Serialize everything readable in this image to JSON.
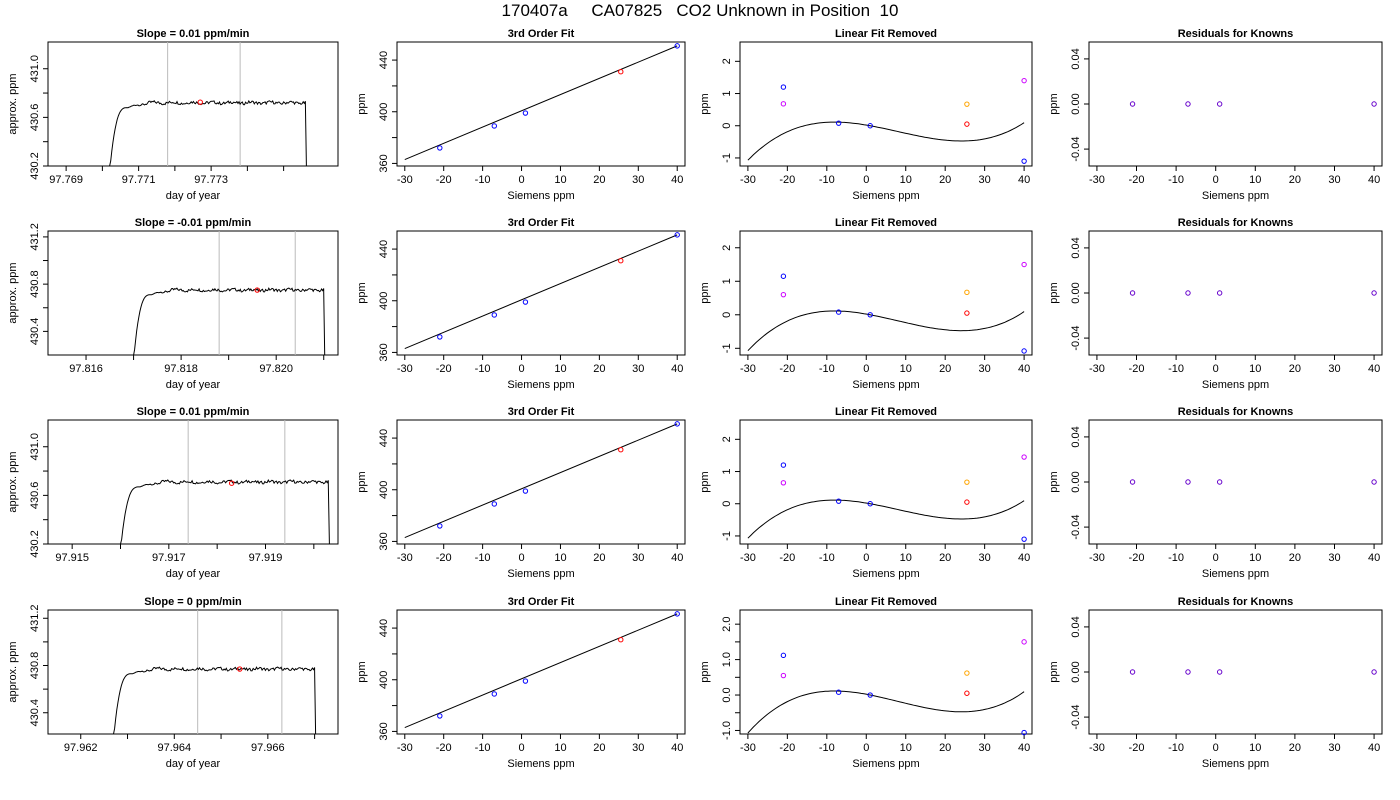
{
  "figure_title": "170407a     CA07825   CO2 Unknown in Position  10",
  "chart_data": [
    {
      "type": "line",
      "title": "Slope =  0.01  ppm/min",
      "xlabel": "day of year",
      "ylabel": "approx. ppm",
      "xlim": [
        97.7685,
        97.7765
      ],
      "ylim": [
        430.2,
        431.22
      ],
      "xticks": [
        97.769,
        97.77,
        97.771,
        97.772,
        97.773,
        97.774,
        97.775
      ],
      "xtick_labels": [
        "97.769",
        "",
        "97.771",
        "",
        "97.773",
        "",
        ""
      ],
      "yticks": [
        430.2,
        430.4,
        430.6,
        430.8,
        431.0
      ],
      "ytick_labels": [
        "430.2",
        "",
        "430.6",
        "",
        "431.0"
      ],
      "vlines": [
        97.7718,
        97.7738
      ],
      "trace_start": 97.7702,
      "trace_end": 97.7756,
      "plateau": 430.72,
      "marker": {
        "x": 97.7727,
        "y": 430.725,
        "color": "#ff0000"
      },
      "grid": false
    },
    {
      "type": "scatter",
      "title": "3rd Order Fit",
      "xlabel": "Siemens ppm",
      "ylabel": "ppm",
      "xlim": [
        -32,
        42
      ],
      "ylim": [
        358,
        454
      ],
      "xticks": [
        -30,
        -20,
        -10,
        0,
        10,
        20,
        30,
        40
      ],
      "yticks": [
        360,
        380,
        400,
        420,
        440
      ],
      "ytick_labels": [
        "360",
        "",
        "400",
        "",
        "440"
      ],
      "line": [
        [
          -30,
          363
        ],
        [
          40,
          451
        ]
      ],
      "points": [
        {
          "x": -21,
          "y": 372,
          "color": "#0000ff"
        },
        {
          "x": -7,
          "y": 389,
          "color": "#0000ff"
        },
        {
          "x": 1,
          "y": 399,
          "color": "#0000ff"
        },
        {
          "x": 25.5,
          "y": 431,
          "color": "#ff0000"
        },
        {
          "x": 40,
          "y": 451,
          "color": "#0000ff"
        }
      ]
    },
    {
      "type": "scatter",
      "title": "Linear Fit Removed",
      "xlabel": "Siemens ppm",
      "ylabel": "ppm",
      "xlim": [
        -32,
        42
      ],
      "ylim": [
        -1.25,
        2.6
      ],
      "xticks": [
        -30,
        -20,
        -10,
        0,
        10,
        20,
        30,
        40
      ],
      "yticks": [
        -1,
        0,
        1,
        2
      ],
      "curve": {
        "a": 3.512e-05,
        "b": -0.0008452,
        "c": -0.02057,
        "d": 0.02141,
        "x0": -30,
        "x1": 40
      },
      "points": [
        {
          "x": -21,
          "y": 1.2,
          "color": "#0000ff"
        },
        {
          "x": -21,
          "y": 0.68,
          "color": "#cc00ff"
        },
        {
          "x": -7,
          "y": 0.08,
          "color": "#0000ff"
        },
        {
          "x": 1,
          "y": 0.0,
          "color": "#0000ff"
        },
        {
          "x": 25.5,
          "y": 0.67,
          "color": "#ffa500"
        },
        {
          "x": 25.5,
          "y": 0.05,
          "color": "#ff0000"
        },
        {
          "x": 40,
          "y": 1.4,
          "color": "#cc00ff"
        },
        {
          "x": 40,
          "y": -1.1,
          "color": "#0000ff"
        }
      ]
    },
    {
      "type": "scatter",
      "title": "Residuals for Knowns",
      "xlabel": "Siemens ppm",
      "ylabel": "ppm",
      "xlim": [
        -32,
        42
      ],
      "ylim": [
        -0.055,
        0.055
      ],
      "xticks": [
        -30,
        -20,
        -10,
        0,
        10,
        20,
        30,
        40
      ],
      "yticks": [
        -0.04,
        0.0,
        0.04
      ],
      "ytick_labels": [
        "-0.04",
        "0.00",
        "0.04"
      ],
      "points": [
        {
          "x": -21,
          "y": 0,
          "color": "#6600cc"
        },
        {
          "x": -7,
          "y": 0,
          "color": "#6600cc"
        },
        {
          "x": 1,
          "y": 0,
          "color": "#6600cc"
        },
        {
          "x": 40,
          "y": 0,
          "color": "#6600cc"
        }
      ]
    },
    {
      "type": "line",
      "title": "Slope =  -0.01  ppm/min",
      "xlabel": "day of year",
      "ylabel": "approx. ppm",
      "xlim": [
        97.8152,
        97.8213
      ],
      "ylim": [
        430.2,
        431.25
      ],
      "xticks": [
        97.816,
        97.817,
        97.818,
        97.819,
        97.82,
        97.821
      ],
      "xtick_labels": [
        "97.816",
        "",
        "97.818",
        "",
        "97.820",
        ""
      ],
      "yticks": [
        430.4,
        430.6,
        430.8,
        431.0,
        431.2
      ],
      "ytick_labels": [
        "430.4",
        "",
        "430.8",
        "",
        "431.2"
      ],
      "vlines": [
        97.8188,
        97.8204
      ],
      "trace_start": 97.817,
      "trace_end": 97.821,
      "plateau": 430.75,
      "marker": {
        "x": 97.8196,
        "y": 430.75,
        "color": "#ff0000"
      },
      "grid": false
    },
    {
      "type": "scatter",
      "title": "3rd Order Fit",
      "xlabel": "Siemens ppm",
      "ylabel": "ppm",
      "xlim": [
        -32,
        42
      ],
      "ylim": [
        358,
        454
      ],
      "xticks": [
        -30,
        -20,
        -10,
        0,
        10,
        20,
        30,
        40
      ],
      "yticks": [
        360,
        380,
        400,
        420,
        440
      ],
      "ytick_labels": [
        "360",
        "",
        "400",
        "",
        "440"
      ],
      "line": [
        [
          -30,
          363
        ],
        [
          40,
          451
        ]
      ],
      "points": [
        {
          "x": -21,
          "y": 372,
          "color": "#0000ff"
        },
        {
          "x": -7,
          "y": 389,
          "color": "#0000ff"
        },
        {
          "x": 1,
          "y": 399,
          "color": "#0000ff"
        },
        {
          "x": 25.5,
          "y": 431,
          "color": "#ff0000"
        },
        {
          "x": 40,
          "y": 451,
          "color": "#0000ff"
        }
      ]
    },
    {
      "type": "scatter",
      "title": "Linear Fit Removed",
      "xlabel": "Siemens ppm",
      "ylabel": "ppm",
      "xlim": [
        -32,
        42
      ],
      "ylim": [
        -1.2,
        2.5
      ],
      "xticks": [
        -30,
        -20,
        -10,
        0,
        10,
        20,
        30,
        40
      ],
      "yticks": [
        -1,
        0,
        1,
        2
      ],
      "curve": {
        "a": 3.512e-05,
        "b": -0.0008452,
        "c": -0.02057,
        "d": 0.02141,
        "x0": -30,
        "x1": 40
      },
      "points": [
        {
          "x": -21,
          "y": 1.15,
          "color": "#0000ff"
        },
        {
          "x": -21,
          "y": 0.6,
          "color": "#cc00ff"
        },
        {
          "x": -7,
          "y": 0.08,
          "color": "#0000ff"
        },
        {
          "x": 1,
          "y": 0.0,
          "color": "#0000ff"
        },
        {
          "x": 25.5,
          "y": 0.67,
          "color": "#ffa500"
        },
        {
          "x": 25.5,
          "y": 0.05,
          "color": "#ff0000"
        },
        {
          "x": 40,
          "y": 1.5,
          "color": "#cc00ff"
        },
        {
          "x": 40,
          "y": -1.08,
          "color": "#0000ff"
        }
      ]
    },
    {
      "type": "scatter",
      "title": "Residuals for Knowns",
      "xlabel": "Siemens ppm",
      "ylabel": "ppm",
      "xlim": [
        -32,
        42
      ],
      "ylim": [
        -0.055,
        0.055
      ],
      "xticks": [
        -30,
        -20,
        -10,
        0,
        10,
        20,
        30,
        40
      ],
      "yticks": [
        -0.04,
        0.0,
        0.04
      ],
      "ytick_labels": [
        "-0.04",
        "0.00",
        "0.04"
      ],
      "points": [
        {
          "x": -21,
          "y": 0,
          "color": "#6600cc"
        },
        {
          "x": -7,
          "y": 0,
          "color": "#6600cc"
        },
        {
          "x": 1,
          "y": 0,
          "color": "#6600cc"
        },
        {
          "x": 40,
          "y": 0,
          "color": "#6600cc"
        }
      ]
    },
    {
      "type": "line",
      "title": "Slope =  0.01  ppm/min",
      "xlabel": "day of year",
      "ylabel": "approx. ppm",
      "xlim": [
        97.9145,
        97.9205
      ],
      "ylim": [
        430.2,
        431.22
      ],
      "xticks": [
        97.915,
        97.916,
        97.917,
        97.918,
        97.919,
        97.92
      ],
      "xtick_labels": [
        "97.915",
        "",
        "97.917",
        "",
        "97.919",
        ""
      ],
      "yticks": [
        430.2,
        430.4,
        430.6,
        430.8,
        431.0
      ],
      "ytick_labels": [
        "430.2",
        "",
        "430.6",
        "",
        "431.0"
      ],
      "vlines": [
        97.9174,
        97.9194
      ],
      "trace_start": 97.916,
      "trace_end": 97.9203,
      "plateau": 430.71,
      "marker": {
        "x": 97.9183,
        "y": 430.7,
        "color": "#ff0000"
      },
      "grid": false
    },
    {
      "type": "scatter",
      "title": "3rd Order Fit",
      "xlabel": "Siemens ppm",
      "ylabel": "ppm",
      "xlim": [
        -32,
        42
      ],
      "ylim": [
        358,
        454
      ],
      "xticks": [
        -30,
        -20,
        -10,
        0,
        10,
        20,
        30,
        40
      ],
      "yticks": [
        360,
        380,
        400,
        420,
        440
      ],
      "ytick_labels": [
        "360",
        "",
        "400",
        "",
        "440"
      ],
      "line": [
        [
          -30,
          363
        ],
        [
          40,
          451
        ]
      ],
      "points": [
        {
          "x": -21,
          "y": 372,
          "color": "#0000ff"
        },
        {
          "x": -7,
          "y": 389,
          "color": "#0000ff"
        },
        {
          "x": 1,
          "y": 399,
          "color": "#0000ff"
        },
        {
          "x": 25.5,
          "y": 431,
          "color": "#ff0000"
        },
        {
          "x": 40,
          "y": 451,
          "color": "#0000ff"
        }
      ]
    },
    {
      "type": "scatter",
      "title": "Linear Fit Removed",
      "xlabel": "Siemens ppm",
      "ylabel": "ppm",
      "xlim": [
        -32,
        42
      ],
      "ylim": [
        -1.25,
        2.6
      ],
      "xticks": [
        -30,
        -20,
        -10,
        0,
        10,
        20,
        30,
        40
      ],
      "yticks": [
        -1,
        0,
        1,
        2
      ],
      "curve": {
        "a": 3.512e-05,
        "b": -0.0008452,
        "c": -0.02057,
        "d": 0.02141,
        "x0": -30,
        "x1": 40
      },
      "points": [
        {
          "x": -21,
          "y": 1.2,
          "color": "#0000ff"
        },
        {
          "x": -21,
          "y": 0.65,
          "color": "#cc00ff"
        },
        {
          "x": -7,
          "y": 0.08,
          "color": "#0000ff"
        },
        {
          "x": 1,
          "y": 0.0,
          "color": "#0000ff"
        },
        {
          "x": 25.5,
          "y": 0.67,
          "color": "#ffa500"
        },
        {
          "x": 25.5,
          "y": 0.05,
          "color": "#ff0000"
        },
        {
          "x": 40,
          "y": 1.45,
          "color": "#cc00ff"
        },
        {
          "x": 40,
          "y": -1.1,
          "color": "#0000ff"
        }
      ]
    },
    {
      "type": "scatter",
      "title": "Residuals for Knowns",
      "xlabel": "Siemens ppm",
      "ylabel": "ppm",
      "xlim": [
        -32,
        42
      ],
      "ylim": [
        -0.055,
        0.055
      ],
      "xticks": [
        -30,
        -20,
        -10,
        0,
        10,
        20,
        30,
        40
      ],
      "yticks": [
        -0.04,
        0.0,
        0.04
      ],
      "ytick_labels": [
        "-0.04",
        "0.00",
        "0.04"
      ],
      "points": [
        {
          "x": -21,
          "y": 0,
          "color": "#6600cc"
        },
        {
          "x": -7,
          "y": 0,
          "color": "#6600cc"
        },
        {
          "x": 1,
          "y": 0,
          "color": "#6600cc"
        },
        {
          "x": 40,
          "y": 0,
          "color": "#6600cc"
        }
      ]
    },
    {
      "type": "line",
      "title": "Slope =  0  ppm/min",
      "xlabel": "day of year",
      "ylabel": "approx. ppm",
      "xlim": [
        97.9613,
        97.9675
      ],
      "ylim": [
        430.22,
        431.27
      ],
      "xticks": [
        97.962,
        97.963,
        97.964,
        97.965,
        97.966,
        97.967
      ],
      "xtick_labels": [
        "97.962",
        "",
        "97.964",
        "",
        "97.966",
        ""
      ],
      "yticks": [
        430.4,
        430.6,
        430.8,
        431.0,
        431.2
      ],
      "ytick_labels": [
        "430.4",
        "",
        "430.8",
        "",
        "431.2"
      ],
      "vlines": [
        97.9645,
        97.9663
      ],
      "trace_start": 97.9627,
      "trace_end": 97.967,
      "plateau": 430.77,
      "marker": {
        "x": 97.9654,
        "y": 430.77,
        "color": "#ff0000"
      },
      "grid": false
    },
    {
      "type": "scatter",
      "title": "3rd Order Fit",
      "xlabel": "Siemens ppm",
      "ylabel": "ppm",
      "xlim": [
        -32,
        42
      ],
      "ylim": [
        358,
        454
      ],
      "xticks": [
        -30,
        -20,
        -10,
        0,
        10,
        20,
        30,
        40
      ],
      "yticks": [
        360,
        380,
        400,
        420,
        440
      ],
      "ytick_labels": [
        "360",
        "",
        "400",
        "",
        "440"
      ],
      "line": [
        [
          -30,
          363
        ],
        [
          40,
          451
        ]
      ],
      "points": [
        {
          "x": -21,
          "y": 372,
          "color": "#0000ff"
        },
        {
          "x": -7,
          "y": 389,
          "color": "#0000ff"
        },
        {
          "x": 1,
          "y": 399,
          "color": "#0000ff"
        },
        {
          "x": 25.5,
          "y": 431,
          "color": "#ff0000"
        },
        {
          "x": 40,
          "y": 451,
          "color": "#0000ff"
        }
      ]
    },
    {
      "type": "scatter",
      "title": "Linear Fit Removed",
      "xlabel": "Siemens ppm",
      "ylabel": "ppm",
      "xlim": [
        -32,
        42
      ],
      "ylim": [
        -1.1,
        2.4
      ],
      "xticks": [
        -30,
        -20,
        -10,
        0,
        10,
        20,
        30,
        40
      ],
      "yticks": [
        -1.0,
        0.0,
        1.0,
        2.0
      ],
      "ytick_labels": [
        "-1.0",
        "0.0",
        "1.0",
        "2.0"
      ],
      "yminor": [
        -0.5,
        0.5,
        1.5
      ],
      "curve": {
        "a": 3.512e-05,
        "b": -0.0008452,
        "c": -0.02057,
        "d": 0.02141,
        "x0": -30,
        "x1": 40
      },
      "points": [
        {
          "x": -21,
          "y": 1.12,
          "color": "#0000ff"
        },
        {
          "x": -21,
          "y": 0.55,
          "color": "#cc00ff"
        },
        {
          "x": -7,
          "y": 0.08,
          "color": "#0000ff"
        },
        {
          "x": 1,
          "y": 0.0,
          "color": "#0000ff"
        },
        {
          "x": 25.5,
          "y": 0.62,
          "color": "#ffa500"
        },
        {
          "x": 25.5,
          "y": 0.05,
          "color": "#ff0000"
        },
        {
          "x": 40,
          "y": 1.5,
          "color": "#cc00ff"
        },
        {
          "x": 40,
          "y": -1.06,
          "color": "#0000ff"
        }
      ]
    },
    {
      "type": "scatter",
      "title": "Residuals for Knowns",
      "xlabel": "Siemens ppm",
      "ylabel": "ppm",
      "xlim": [
        -32,
        42
      ],
      "ylim": [
        -0.055,
        0.055
      ],
      "xticks": [
        -30,
        -20,
        -10,
        0,
        10,
        20,
        30,
        40
      ],
      "yticks": [
        -0.04,
        0.0,
        0.04
      ],
      "ytick_labels": [
        "-0.04",
        "0.00",
        "0.04"
      ],
      "points": [
        {
          "x": -21,
          "y": 0,
          "color": "#6600cc"
        },
        {
          "x": -7,
          "y": 0,
          "color": "#6600cc"
        },
        {
          "x": 1,
          "y": 0,
          "color": "#6600cc"
        },
        {
          "x": 40,
          "y": 0,
          "color": "#6600cc"
        }
      ]
    }
  ]
}
